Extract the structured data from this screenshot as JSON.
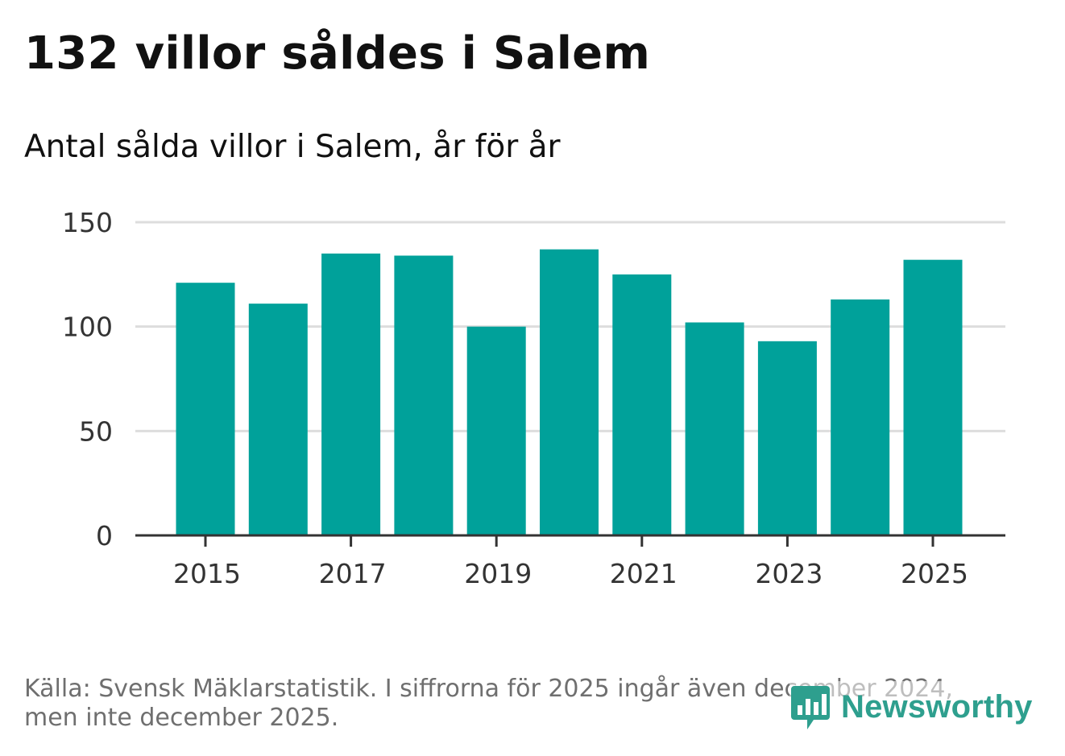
{
  "title": "132 villor såldes i Salem",
  "subtitle": "Antal sålda villor i Salem, år för år",
  "footer": {
    "line1": "Källa: Svensk Mäklarstatistik. I siffrorna för 2025 ingår även december 2024,",
    "line2": "men inte december 2025."
  },
  "brand": {
    "name": "Newsworthy",
    "color": "#2e9f8e"
  },
  "colors": {
    "bar": "#00a19a",
    "grid": "#dddddd",
    "axis": "#333333"
  },
  "chart_data": {
    "type": "bar",
    "title": "132 villor såldes i Salem",
    "subtitle": "Antal sålda villor i Salem, år för år",
    "categories": [
      "2015",
      "2016",
      "2017",
      "2018",
      "2019",
      "2020",
      "2021",
      "2022",
      "2023",
      "2024",
      "2025"
    ],
    "values": [
      121,
      111,
      135,
      134,
      100,
      137,
      125,
      102,
      93,
      113,
      132
    ],
    "xticks": [
      "2015",
      "2017",
      "2019",
      "2021",
      "2023",
      "2025"
    ],
    "yticks": [
      0,
      50,
      100,
      150
    ],
    "ylim": [
      0,
      150
    ],
    "xlabel": "",
    "ylabel": "",
    "grid": true
  }
}
